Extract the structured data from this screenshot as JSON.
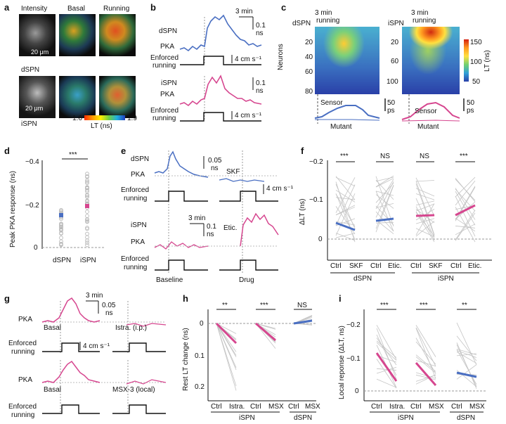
{
  "panels": {
    "a": {
      "label": "a",
      "col_intensity": "Intensity",
      "col_basal": "Basal",
      "col_running": "Running",
      "scale_top": "20 μm",
      "scale_bottom": "20 μm",
      "row_dspn": "dSPN",
      "row_ispn": "iSPN",
      "cbar_min": "1.6",
      "cbar_max": "1.9",
      "cbar_unit": "LT (ns)"
    },
    "b": {
      "label": "b",
      "time": "3 min",
      "scale_ns": "0.1",
      "scale_ns2": "ns",
      "dspn": "dSPN",
      "pka1": "PKA",
      "enf1a": "Enforced",
      "enf1b": "running",
      "speed1": "4 cm s⁻¹",
      "ispn": "iSPN",
      "pka2": "PKA",
      "enf2a": "Enforced",
      "enf2b": "running",
      "speed2": "4 cm s⁻¹",
      "scale2_ns": "0.1",
      "scale2_ns2": "ns"
    },
    "c": {
      "label": "c",
      "dspn": "dSPN",
      "ispn": "iSPN",
      "run_l1": "3 min",
      "run_l2": "running",
      "run_r1": "3 min",
      "run_r2": "running",
      "neurons": "Neurons",
      "yticks_l": [
        "20",
        "40",
        "60",
        "80"
      ],
      "yticks_r": [
        "20",
        "60",
        "100"
      ],
      "cbar_max": "150",
      "cbar_mid": "100",
      "cbar_min": "50",
      "cbar_unit": "LT (ns)",
      "sensor_l": "Sensor",
      "mutant_l": "Mutant",
      "sensor_r": "Sensor",
      "mutant_r": "Mutant",
      "scale_l": "50",
      "scale_l2": "ps",
      "scale_r": "50",
      "scale_r2": "ps"
    },
    "d": {
      "label": "d",
      "ylabel": "Peak PKA response (ns)",
      "yticks": [
        "−0.4",
        "−0.2",
        "0"
      ],
      "xticks": [
        "dSPN",
        "iSPN"
      ],
      "sig": "***"
    },
    "e": {
      "label": "e",
      "dspn": "dSPN",
      "pka1": "PKA",
      "enf1a": "Enforced",
      "enf1b": "running",
      "scale_ns": "0.05",
      "scale_ns2": "ns",
      "skf": "SKF",
      "speed": "4 cm s⁻¹",
      "time": "3 min",
      "scale2_ns": "0.1",
      "scale2_ns2": "ns",
      "ispn": "iSPN",
      "pka2": "PKA",
      "etic": "Etic.",
      "enf2a": "Enforced",
      "enf2b": "running",
      "baseline": "Baseline",
      "drug": "Drug"
    },
    "f": {
      "label": "f",
      "ylabel": "ΔLT (ns)",
      "yticks": [
        "−0.2",
        "−0.1",
        "0"
      ],
      "sigs": [
        "***",
        "NS",
        "NS",
        "***"
      ],
      "xticks": [
        "Ctrl",
        "SKF",
        "Ctrl",
        "Etic.",
        "Ctrl",
        "SKF",
        "Ctrl",
        "Etic."
      ],
      "group1": "dSPN",
      "group2": "iSPN"
    },
    "g": {
      "label": "g",
      "time": "3 min",
      "scale_ns": "0.05",
      "scale_ns2": "ns",
      "pka1": "PKA",
      "basal1": "Basal",
      "istra": "Istra. (i.p.)",
      "enf1a": "Enforced",
      "enf1b": "running",
      "speed": "4 cm s⁻¹",
      "pka2": "PKA",
      "basal2": "Basal",
      "msx": "MSX-3 (local)",
      "enf2a": "Enforced",
      "enf2b": "running"
    },
    "h": {
      "label": "h",
      "ylabel": "Rest LT change (ns)",
      "yticks": [
        "0",
        "0.1",
        "0.2"
      ],
      "sigs": [
        "**",
        "***",
        "NS"
      ],
      "xticks": [
        "Ctrl",
        "Istra.",
        "Ctrl",
        "MSX",
        "Ctrl",
        "MSX"
      ],
      "group1": "iSPN",
      "group2": "dSPN"
    },
    "i": {
      "label": "i",
      "ylabel": "Local reponse (ΔLT, ns)",
      "yticks": [
        "−0.2",
        "−0.1",
        "0"
      ],
      "sigs": [
        "***",
        "***",
        "**"
      ],
      "xticks": [
        "Ctrl",
        "Istra.",
        "Ctrl",
        "MSX",
        "Ctrl",
        "MSX"
      ],
      "group1": "iSPN",
      "group2": "dSPN"
    }
  },
  "colors": {
    "blue": "#4a6fc2",
    "pink": "#d6468f",
    "grey": "#b9b9b9",
    "dash": "#9a9a9a"
  }
}
